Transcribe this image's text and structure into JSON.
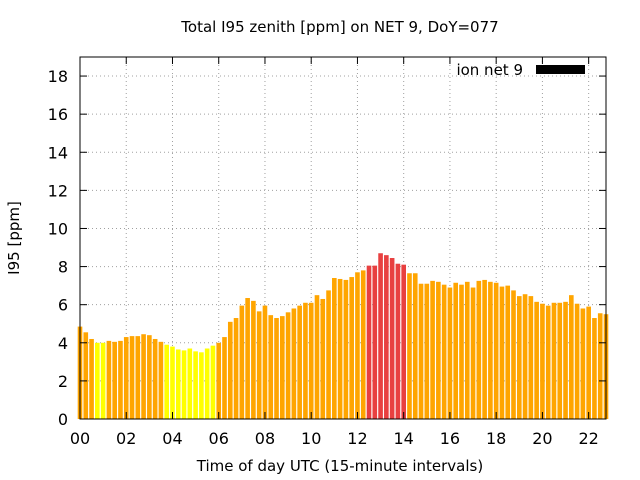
{
  "chart_data": {
    "type": "bar",
    "title": "Total I95 zenith [ppm] on NET 9, DoY=077",
    "xlabel": "Time of day UTC (15-minute intervals)",
    "ylabel": "I95 [ppm]",
    "ylim": [
      0,
      19
    ],
    "xlim": [
      0,
      22.75
    ],
    "bar_width_hours": 0.2,
    "x_ticks": [
      "00",
      "02",
      "04",
      "06",
      "08",
      "10",
      "12",
      "14",
      "16",
      "18",
      "20",
      "22"
    ],
    "y_ticks": [
      "0",
      "2",
      "4",
      "6",
      "8",
      "10",
      "12",
      "14",
      "16",
      "18"
    ],
    "grid": true,
    "legend": {
      "label": "ion net 9",
      "position": "top-right",
      "color": "#000000"
    },
    "colors": {
      "low": "#ffff00",
      "mid": "#ffa500",
      "high": "#e84040"
    },
    "series": [
      {
        "step_hours": 0.25,
        "start_hour": 0,
        "values": [
          4.85,
          4.55,
          4.2,
          4.0,
          4.0,
          4.1,
          4.05,
          4.1,
          4.3,
          4.35,
          4.35,
          4.45,
          4.4,
          4.2,
          4.05,
          3.9,
          3.8,
          3.65,
          3.6,
          3.7,
          3.55,
          3.5,
          3.7,
          3.85,
          4.0,
          4.3,
          5.1,
          5.3,
          5.95,
          6.35,
          6.2,
          5.65,
          5.95,
          5.45,
          5.3,
          5.4,
          5.6,
          5.8,
          5.95,
          6.1,
          6.1,
          6.5,
          6.3,
          6.75,
          7.4,
          7.35,
          7.3,
          7.45,
          7.7,
          7.8,
          8.05,
          8.05,
          8.7,
          8.6,
          8.45,
          8.15,
          8.1,
          7.65,
          7.65,
          7.1,
          7.1,
          7.25,
          7.2,
          7.05,
          6.9,
          7.15,
          7.05,
          7.2,
          6.9,
          7.25,
          7.3,
          7.2,
          7.15,
          6.95,
          7.0,
          6.75,
          6.45,
          6.55,
          6.45,
          6.15,
          6.05,
          5.95,
          6.1,
          6.1,
          6.15,
          6.5,
          6.05,
          5.8,
          5.9,
          5.3,
          5.55,
          5.5
        ],
        "colors": [
          "mid",
          "mid",
          "mid",
          "low",
          "low",
          "mid",
          "mid",
          "mid",
          "mid",
          "mid",
          "mid",
          "mid",
          "mid",
          "mid",
          "mid",
          "low",
          "low",
          "low",
          "low",
          "low",
          "low",
          "low",
          "low",
          "low",
          "mid",
          "mid",
          "mid",
          "mid",
          "mid",
          "mid",
          "mid",
          "mid",
          "mid",
          "mid",
          "mid",
          "mid",
          "mid",
          "mid",
          "mid",
          "mid",
          "mid",
          "mid",
          "mid",
          "mid",
          "mid",
          "mid",
          "mid",
          "mid",
          "mid",
          "mid",
          "high",
          "high",
          "high",
          "high",
          "high",
          "high",
          "high",
          "mid",
          "mid",
          "mid",
          "mid",
          "mid",
          "mid",
          "mid",
          "mid",
          "mid",
          "mid",
          "mid",
          "mid",
          "mid",
          "mid",
          "mid",
          "mid",
          "mid",
          "mid",
          "mid",
          "mid",
          "mid",
          "mid",
          "mid",
          "mid",
          "mid",
          "mid",
          "mid",
          "mid",
          "mid",
          "mid",
          "mid",
          "mid",
          "mid",
          "mid",
          "mid"
        ]
      }
    ]
  }
}
